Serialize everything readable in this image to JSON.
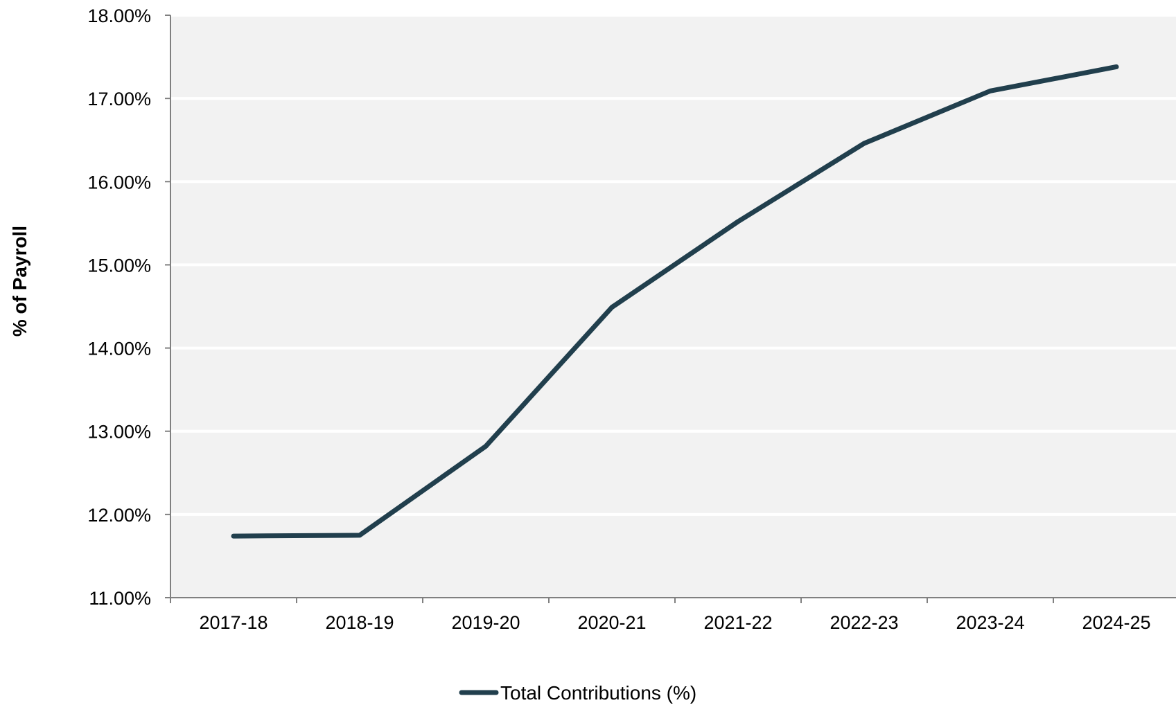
{
  "chart_data": {
    "type": "line",
    "ylabel": "% of Payroll",
    "xlabel": "",
    "categories": [
      "2017-18",
      "2018-19",
      "2019-20",
      "2020-21",
      "2021-22",
      "2022-23",
      "2023-24",
      "2024-25"
    ],
    "y_tick_labels": [
      "11.00%",
      "12.00%",
      "13.00%",
      "14.00%",
      "15.00%",
      "16.00%",
      "17.00%",
      "18.00%"
    ],
    "ylim": [
      11,
      18
    ],
    "grid": true,
    "legend_position": "bottom",
    "series": [
      {
        "name": "Total Contributions (%)",
        "color": "#213f4d",
        "values": [
          11.74,
          11.75,
          12.82,
          14.49,
          15.52,
          16.46,
          17.09,
          17.38
        ]
      }
    ]
  },
  "colors": {
    "plot_background": "#f2f2f2",
    "gridline": "#ffffff",
    "axis": "#808080"
  }
}
